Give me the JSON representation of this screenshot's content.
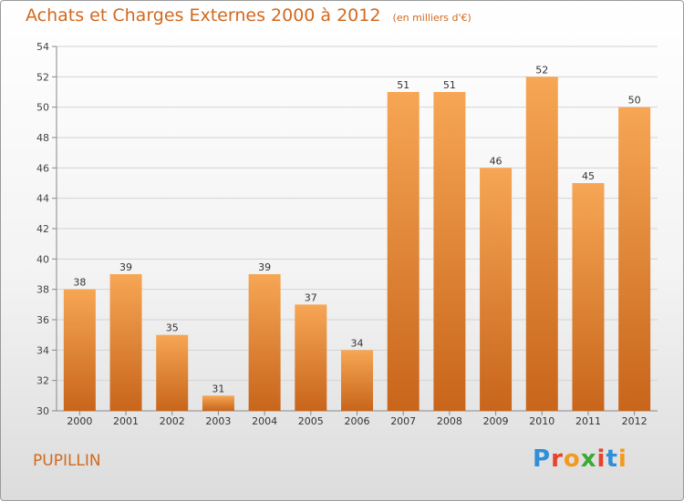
{
  "title": "Achats et Charges Externes 2000 à 2012",
  "unit": "(en milliers d'€)",
  "commune": "PUPILLIN",
  "logo": {
    "text": "Proxiti",
    "letter_colors": [
      "#2f8fd8",
      "#e8412c",
      "#f39a1c",
      "#3aaa35",
      "#e8412c",
      "#2f8fd8",
      "#f39a1c"
    ]
  },
  "colors": {
    "title": "#d2691e",
    "bar_light": "#f6a654",
    "bar_dark": "#c8651b"
  },
  "chart_data": {
    "type": "bar",
    "title": "Achats et Charges Externes 2000 à 2012",
    "ylabel": "",
    "xlabel": "",
    "categories": [
      "2000",
      "2001",
      "2002",
      "2003",
      "2004",
      "2005",
      "2006",
      "2007",
      "2008",
      "2009",
      "2010",
      "2011",
      "2012"
    ],
    "values": [
      38,
      39,
      35,
      31,
      39,
      37,
      34,
      51,
      51,
      46,
      52,
      45,
      50
    ],
    "ylim": [
      30,
      54
    ],
    "yticks": [
      30,
      32,
      34,
      36,
      38,
      40,
      42,
      44,
      46,
      48,
      50,
      52,
      54
    ],
    "grid": true,
    "data_labels": true
  }
}
